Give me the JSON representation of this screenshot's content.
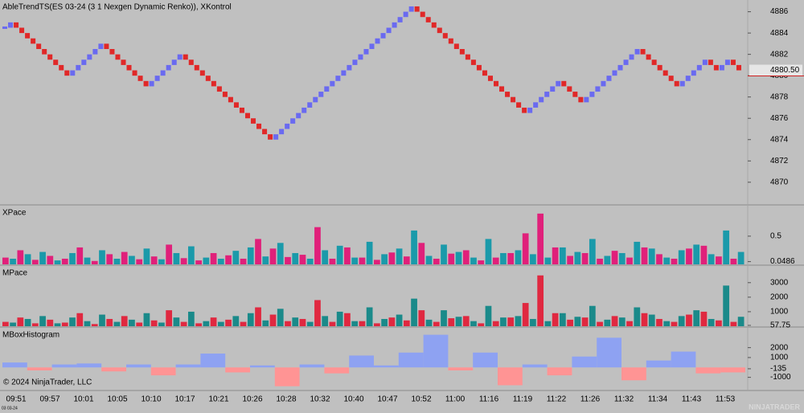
{
  "chart_data": [
    {
      "type": "renko",
      "title": "AbleTrendTS(ES 03-24 (3 1 Nexgen Dynamic Renko)), XKontrol",
      "up_color": "#6a6af0",
      "down_color": "#e02828",
      "values": [
        4884.5,
        4885,
        4884.5,
        4884,
        4883.5,
        4883,
        4882.5,
        4882,
        4881.5,
        4881,
        4880.5,
        4880,
        4880.5,
        4881,
        4881.5,
        4882,
        4882.5,
        4883,
        4882.5,
        4882,
        4881.5,
        4881,
        4880.5,
        4880,
        4879.5,
        4879,
        4879.5,
        4880,
        4880.5,
        4881,
        4881.5,
        4882,
        4881.5,
        4881,
        4880.5,
        4880,
        4879.5,
        4879,
        4878.5,
        4878,
        4877.5,
        4877,
        4876.5,
        4876,
        4875.5,
        4875,
        4874.5,
        4874,
        4874.5,
        4875,
        4875.5,
        4876,
        4876.5,
        4877,
        4877.5,
        4878,
        4878.5,
        4879,
        4879.5,
        4880,
        4880.5,
        4881,
        4881.5,
        4882,
        4882.5,
        4883,
        4883.5,
        4884,
        4884.5,
        4885,
        4885.5,
        4886,
        4886.5,
        4886,
        4885.5,
        4885,
        4884.5,
        4884,
        4883.5,
        4883,
        4882.5,
        4882,
        4881.5,
        4881,
        4880.5,
        4880,
        4879.5,
        4879,
        4878.5,
        4878,
        4877.5,
        4877,
        4876.5,
        4877,
        4877.5,
        4878,
        4878.5,
        4879,
        4879.5,
        4879,
        4878.5,
        4878,
        4877.5,
        4878,
        4878.5,
        4879,
        4879.5,
        4880,
        4880.5,
        4881,
        4881.5,
        4882,
        4882.5,
        4882,
        4881.5,
        4881,
        4880.5,
        4880,
        4879.5,
        4879,
        4879.5,
        4880,
        4880.5,
        4881,
        4881.5,
        4881,
        4880.5,
        4881,
        4881.5,
        4881,
        4880.5
      ],
      "last_price": {
        "value": 4880.5,
        "label": "4880.50"
      },
      "ylim": [
        4867.95,
        4887.1
      ],
      "yticks": [
        4870,
        4872,
        4874,
        4876,
        4878,
        4880,
        4882,
        4884,
        4886
      ],
      "x_axis_labels": [
        "09:51",
        "09:57",
        "10:01",
        "10:05",
        "10:10",
        "10:17",
        "10:21",
        "10:26",
        "10:28",
        "10:32",
        "10:40",
        "10:47",
        "10:52",
        "11:00",
        "11:16",
        "11:19",
        "11:22",
        "11:26",
        "11:32",
        "11:34",
        "11:43",
        "11:53"
      ]
    },
    {
      "type": "bar",
      "title": "XPace",
      "ylim": [
        0,
        1.04
      ],
      "yticks": [
        0.0486,
        0.5
      ],
      "series": [
        {
          "color": "#e0207a",
          "values": [
            0.12,
            0.25,
            0.08,
            0.15,
            0.1,
            0.3,
            0.06,
            0.18,
            0.22,
            0.09,
            0.14,
            0.35,
            0.11,
            0.07,
            0.2,
            0.16,
            0.1,
            0.45,
            0.28,
            0.13,
            0.17,
            0.66,
            0.1,
            0.3,
            0.12,
            0.08,
            0.21,
            0.14,
            0.38,
            0.1,
            0.19,
            0.25,
            0.07,
            0.12,
            0.2,
            0.55,
            0.9,
            0.3,
            0.15,
            0.2,
            0.1,
            0.24,
            0.12,
            0.3,
            0.18,
            0.1,
            0.28,
            0.33,
            0.14,
            0.1
          ]
        },
        {
          "color": "#1a9aaa",
          "values": [
            0.1,
            0.18,
            0.22,
            0.07,
            0.2,
            0.12,
            0.25,
            0.1,
            0.15,
            0.28,
            0.09,
            0.2,
            0.32,
            0.12,
            0.1,
            0.24,
            0.3,
            0.14,
            0.38,
            0.2,
            0.1,
            0.25,
            0.33,
            0.12,
            0.4,
            0.18,
            0.28,
            0.6,
            0.15,
            0.35,
            0.22,
            0.12,
            0.45,
            0.2,
            0.25,
            0.18,
            0.12,
            0.3,
            0.22,
            0.45,
            0.15,
            0.2,
            0.4,
            0.28,
            0.12,
            0.25,
            0.35,
            0.18,
            0.6,
            0.22
          ]
        }
      ]
    },
    {
      "type": "bar",
      "title": "MPace",
      "ylim": [
        0,
        4150
      ],
      "yticks": [
        57.75,
        1000,
        2000,
        3000
      ],
      "series": [
        {
          "color": "#e02840",
          "values": [
            300,
            600,
            200,
            450,
            250,
            900,
            150,
            500,
            700,
            250,
            400,
            1100,
            300,
            200,
            600,
            450,
            300,
            1300,
            800,
            350,
            500,
            1800,
            300,
            900,
            350,
            200,
            600,
            400,
            1100,
            300,
            550,
            700,
            200,
            350,
            600,
            1600,
            3500,
            900,
            450,
            600,
            300,
            700,
            350,
            900,
            500,
            300,
            800,
            1000,
            400,
            300
          ]
        },
        {
          "color": "#1a8a8a",
          "values": [
            250,
            500,
            700,
            200,
            600,
            350,
            800,
            300,
            450,
            900,
            250,
            600,
            1000,
            350,
            300,
            700,
            900,
            400,
            1200,
            600,
            300,
            700,
            1000,
            350,
            1300,
            500,
            800,
            1900,
            450,
            1100,
            650,
            350,
            1400,
            600,
            700,
            500,
            350,
            900,
            650,
            1400,
            450,
            600,
            1300,
            800,
            350,
            700,
            1100,
            500,
            2800,
            650
          ]
        }
      ]
    },
    {
      "type": "box",
      "title": "MBoxHistogram",
      "ylim": [
        -2250,
        4000
      ],
      "yticks": [
        -1000,
        -135,
        1000,
        2000
      ],
      "pos_color": "#8ea2f2",
      "neg_color": "#ff9494",
      "values": [
        500,
        -300,
        300,
        400,
        -400,
        300,
        -800,
        300,
        1400,
        -500,
        200,
        -1900,
        300,
        -600,
        1200,
        200,
        1500,
        3300,
        -300,
        1500,
        -1800,
        300,
        -800,
        1100,
        3000,
        -1300,
        700,
        1600,
        -600,
        -500
      ]
    }
  ],
  "footer": {
    "copyright": "© 2024 NinjaTrader, LLC",
    "instrument": "03 03-24",
    "logo": "NINJATRADER"
  }
}
